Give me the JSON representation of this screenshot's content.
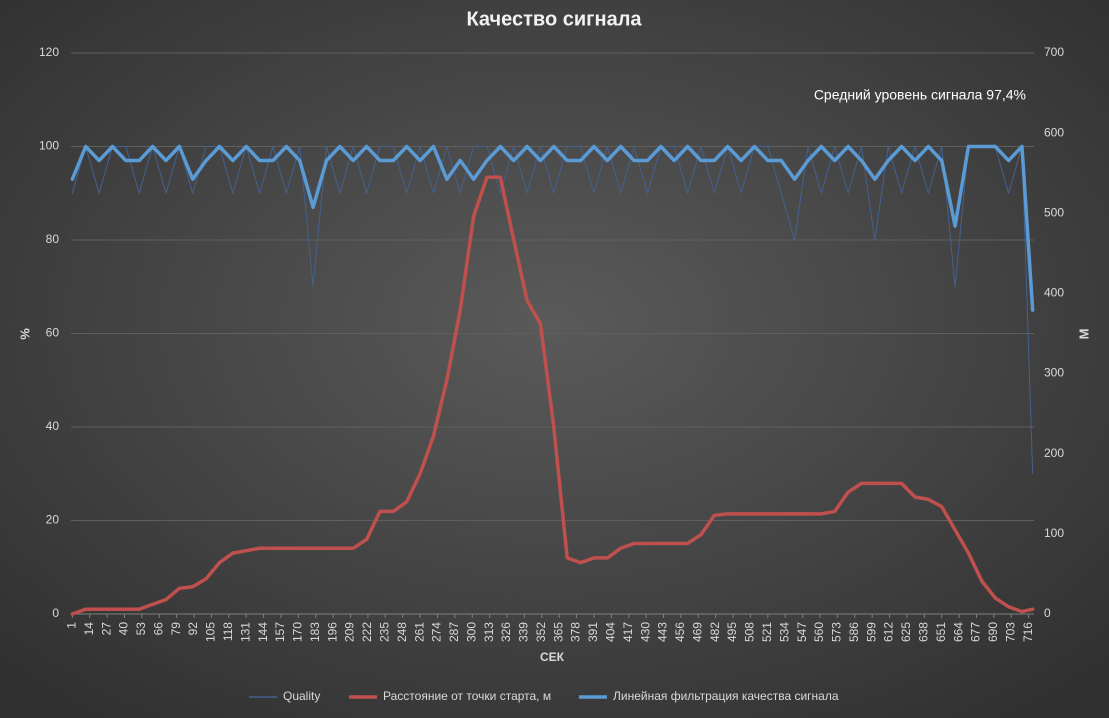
{
  "chart_data": {
    "type": "line",
    "title": "Качество сигнала",
    "annotation": "Средний уровень сигнала 97,4%",
    "x_label": "СЕК",
    "y_label": "%",
    "y2_label": "М",
    "x": [
      1,
      11,
      21,
      31,
      41,
      51,
      61,
      71,
      81,
      91,
      101,
      111,
      121,
      131,
      141,
      151,
      161,
      171,
      181,
      191,
      201,
      211,
      221,
      231,
      241,
      251,
      261,
      271,
      281,
      291,
      301,
      311,
      321,
      331,
      341,
      351,
      361,
      371,
      381,
      391,
      401,
      411,
      421,
      431,
      441,
      451,
      461,
      471,
      481,
      491,
      501,
      511,
      521,
      531,
      541,
      551,
      561,
      571,
      581,
      591,
      601,
      611,
      621,
      631,
      641,
      651,
      661,
      671,
      681,
      691,
      701,
      711,
      719
    ],
    "xlim": [
      0,
      720
    ],
    "xticks": [
      1,
      14,
      27,
      40,
      53,
      66,
      79,
      92,
      105,
      118,
      131,
      144,
      157,
      170,
      183,
      196,
      209,
      222,
      235,
      248,
      261,
      274,
      287,
      300,
      313,
      326,
      339,
      352,
      365,
      378,
      391,
      404,
      417,
      430,
      443,
      456,
      469,
      482,
      495,
      508,
      521,
      534,
      547,
      560,
      573,
      586,
      599,
      612,
      625,
      638,
      651,
      664,
      677,
      690,
      703,
      716
    ],
    "ylim": [
      0,
      120
    ],
    "yticks": [
      0,
      20,
      40,
      60,
      80,
      100,
      120
    ],
    "y2lim": [
      0,
      700
    ],
    "y2ticks": [
      0,
      100,
      200,
      300,
      400,
      500,
      600,
      700
    ],
    "grid": true,
    "legend": "bottom",
    "series": [
      {
        "name": "Quality",
        "color": "#44618f",
        "values": [
          90,
          100,
          90,
          100,
          100,
          90,
          100,
          90,
          100,
          90,
          100,
          100,
          90,
          100,
          90,
          100,
          90,
          100,
          70,
          100,
          90,
          100,
          90,
          100,
          100,
          90,
          100,
          90,
          100,
          90,
          100,
          100,
          90,
          100,
          90,
          100,
          90,
          100,
          100,
          90,
          100,
          90,
          100,
          90,
          100,
          100,
          90,
          100,
          90,
          100,
          90,
          100,
          100,
          90,
          80,
          100,
          90,
          100,
          90,
          100,
          80,
          100,
          90,
          100,
          90,
          100,
          70,
          100,
          100,
          100,
          90,
          100,
          30
        ]
      },
      {
        "name": "Расстояние от точки старта, м",
        "color": "#c0504d",
        "axis": "y2",
        "values": [
          0,
          6,
          6,
          6,
          6,
          6,
          12,
          18,
          32,
          34,
          44,
          64,
          76,
          79,
          82,
          82,
          82,
          82,
          82,
          82,
          82,
          82,
          93,
          128,
          128,
          140,
          175,
          222,
          292,
          379,
          496,
          545,
          545,
          467,
          391,
          362,
          233,
          70,
          64,
          70,
          70,
          82,
          88,
          88,
          88,
          88,
          88,
          99,
          123,
          125,
          125,
          125,
          125,
          125,
          125,
          125,
          125,
          128,
          152,
          163,
          163,
          163,
          163,
          146,
          143,
          134,
          105,
          76,
          41,
          20,
          9,
          3,
          6
        ]
      },
      {
        "name": "Линейная фильтрация качества сигнала",
        "color": "#5b9bd5",
        "values": [
          93,
          100,
          97,
          100,
          97,
          97,
          100,
          97,
          100,
          93,
          97,
          100,
          97,
          100,
          97,
          97,
          100,
          97,
          87,
          97,
          100,
          97,
          100,
          97,
          97,
          100,
          97,
          100,
          93,
          97,
          93,
          97,
          100,
          97,
          100,
          97,
          100,
          97,
          97,
          100,
          97,
          100,
          97,
          97,
          100,
          97,
          100,
          97,
          97,
          100,
          97,
          100,
          97,
          97,
          93,
          97,
          100,
          97,
          100,
          97,
          93,
          97,
          100,
          97,
          100,
          97,
          83,
          100,
          100,
          100,
          97,
          100,
          65
        ]
      }
    ]
  }
}
